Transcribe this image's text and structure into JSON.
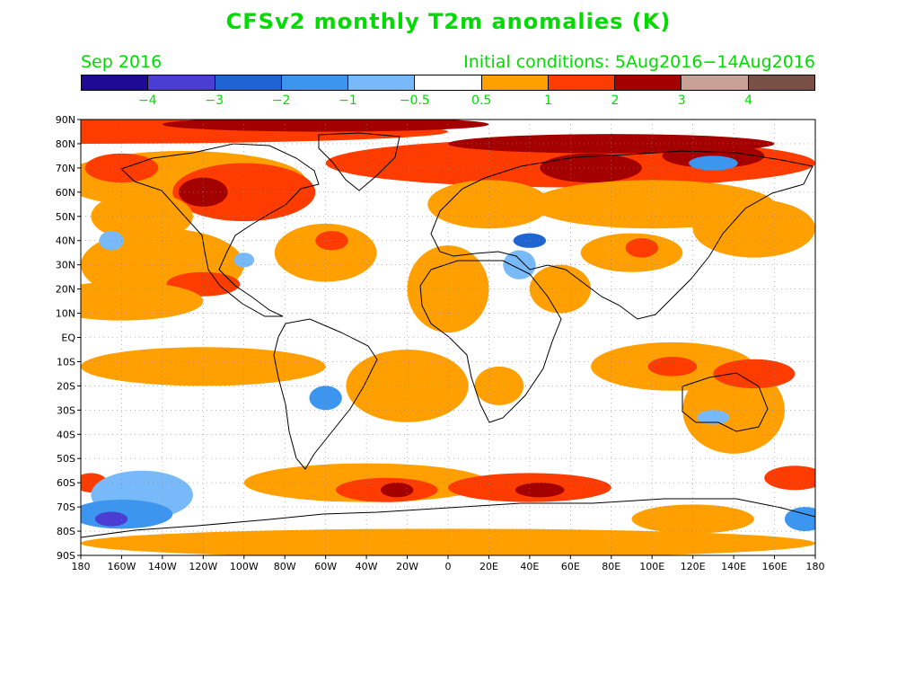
{
  "header": {
    "title": "CFSv2 monthly T2m anomalies (K)",
    "month": "Sep 2016",
    "initial_conditions": "Initial conditions: 5Aug2016−14Aug2016"
  },
  "colorbar": {
    "colors": [
      "#1f0a96",
      "#4b3cd2",
      "#1e64d2",
      "#3c96f0",
      "#78b9fa",
      "#ffffff",
      "#ffa000",
      "#ff3c00",
      "#a50000",
      "#c8a096",
      "#785046"
    ],
    "labels": [
      "−4",
      "−3",
      "−2",
      "−1",
      "−0.5",
      "0.5",
      "1",
      "2",
      "3",
      "4"
    ]
  },
  "axes": {
    "lat_labels": [
      "90N",
      "80N",
      "70N",
      "60N",
      "50N",
      "40N",
      "30N",
      "20N",
      "10N",
      "EQ",
      "10S",
      "20S",
      "30S",
      "40S",
      "50S",
      "60S",
      "70S",
      "80S",
      "90S"
    ],
    "lon_labels": [
      "180",
      "160W",
      "140W",
      "120W",
      "100W",
      "80W",
      "60W",
      "40W",
      "20W",
      "0",
      "20E",
      "40E",
      "60E",
      "80E",
      "100E",
      "120E",
      "140E",
      "160E",
      "180"
    ]
  },
  "anomaly_blobs": [
    {
      "lon": -180,
      "lat": 85,
      "rlon": 180,
      "rlat": 5,
      "c": 7
    },
    {
      "lon": -60,
      "lat": 88,
      "rlon": 80,
      "rlat": 3,
      "c": 8
    },
    {
      "lon": -130,
      "lat": 65,
      "rlon": 60,
      "rlat": 12,
      "c": 6
    },
    {
      "lon": -100,
      "lat": 60,
      "rlon": 35,
      "rlat": 12,
      "c": 7
    },
    {
      "lon": -120,
      "lat": 60,
      "rlon": 12,
      "rlat": 6,
      "c": 8
    },
    {
      "lon": -160,
      "lat": 70,
      "rlon": 18,
      "rlat": 6,
      "c": 7
    },
    {
      "lon": -150,
      "lat": 50,
      "rlon": 25,
      "rlat": 10,
      "c": 6
    },
    {
      "lon": -140,
      "lat": 30,
      "rlon": 40,
      "rlat": 15,
      "c": 6
    },
    {
      "lon": -120,
      "lat": 22,
      "rlon": 18,
      "rlat": 5,
      "c": 7
    },
    {
      "lon": -160,
      "lat": 15,
      "rlon": 40,
      "rlat": 8,
      "c": 6
    },
    {
      "lon": -60,
      "lat": 35,
      "rlon": 25,
      "rlat": 12,
      "c": 6
    },
    {
      "lon": -57,
      "lat": 40,
      "rlon": 8,
      "rlat": 4,
      "c": 7
    },
    {
      "lon": 60,
      "lat": 72,
      "rlon": 120,
      "rlat": 10,
      "c": 7
    },
    {
      "lon": 80,
      "lat": 80,
      "rlon": 80,
      "rlat": 4,
      "c": 8
    },
    {
      "lon": 70,
      "lat": 70,
      "rlon": 25,
      "rlat": 6,
      "c": 8
    },
    {
      "lon": 130,
      "lat": 75,
      "rlon": 25,
      "rlat": 5,
      "c": 8
    },
    {
      "lon": 100,
      "lat": 55,
      "rlon": 60,
      "rlat": 10,
      "c": 6
    },
    {
      "lon": 20,
      "lat": 55,
      "rlon": 30,
      "rlat": 10,
      "c": 6
    },
    {
      "lon": 150,
      "lat": 45,
      "rlon": 30,
      "rlat": 12,
      "c": 6
    },
    {
      "lon": 90,
      "lat": 35,
      "rlon": 25,
      "rlat": 8,
      "c": 6
    },
    {
      "lon": 95,
      "lat": 37,
      "rlon": 8,
      "rlat": 4,
      "c": 7
    },
    {
      "lon": 0,
      "lat": 20,
      "rlon": 20,
      "rlat": 18,
      "c": 6
    },
    {
      "lon": 55,
      "lat": 20,
      "rlon": 15,
      "rlat": 10,
      "c": 6
    },
    {
      "lon": -120,
      "lat": -12,
      "rlon": 60,
      "rlat": 8,
      "c": 6
    },
    {
      "lon": -20,
      "lat": -20,
      "rlon": 30,
      "rlat": 15,
      "c": 6
    },
    {
      "lon": 110,
      "lat": -12,
      "rlon": 40,
      "rlat": 10,
      "c": 6
    },
    {
      "lon": 110,
      "lat": -12,
      "rlon": 12,
      "rlat": 4,
      "c": 7
    },
    {
      "lon": 140,
      "lat": -30,
      "rlon": 25,
      "rlat": 18,
      "c": 6
    },
    {
      "lon": 150,
      "lat": -15,
      "rlon": 20,
      "rlat": 6,
      "c": 7
    },
    {
      "lon": 25,
      "lat": -20,
      "rlon": 12,
      "rlat": 8,
      "c": 6
    },
    {
      "lon": -40,
      "lat": -60,
      "rlon": 60,
      "rlat": 8,
      "c": 6
    },
    {
      "lon": -30,
      "lat": -63,
      "rlon": 25,
      "rlat": 5,
      "c": 7
    },
    {
      "lon": -25,
      "lat": -63,
      "rlon": 8,
      "rlat": 3,
      "c": 8
    },
    {
      "lon": 40,
      "lat": -62,
      "rlon": 40,
      "rlat": 6,
      "c": 7
    },
    {
      "lon": 45,
      "lat": -63,
      "rlon": 12,
      "rlat": 3,
      "c": 8
    },
    {
      "lon": -175,
      "lat": -60,
      "rlon": 8,
      "rlat": 4,
      "c": 7
    },
    {
      "lon": 170,
      "lat": -58,
      "rlon": 15,
      "rlat": 5,
      "c": 7
    },
    {
      "lon": -150,
      "lat": -65,
      "rlon": 25,
      "rlat": 10,
      "c": 4
    },
    {
      "lon": -160,
      "lat": -73,
      "rlon": 25,
      "rlat": 6,
      "c": 3
    },
    {
      "lon": -165,
      "lat": -75,
      "rlon": 8,
      "rlat": 3,
      "c": 1
    },
    {
      "lon": 0,
      "lat": -85,
      "rlon": 180,
      "rlat": 6,
      "c": 6
    },
    {
      "lon": 120,
      "lat": -75,
      "rlon": 30,
      "rlat": 6,
      "c": 6
    },
    {
      "lon": 175,
      "lat": -75,
      "rlon": 10,
      "rlat": 5,
      "c": 3
    },
    {
      "lon": 40,
      "lat": 40,
      "rlon": 8,
      "rlat": 3,
      "c": 2
    },
    {
      "lon": 35,
      "lat": 30,
      "rlon": 8,
      "rlat": 6,
      "c": 4
    },
    {
      "lon": -165,
      "lat": 40,
      "rlon": 6,
      "rlat": 4,
      "c": 4
    },
    {
      "lon": 130,
      "lat": 72,
      "rlon": 12,
      "rlat": 3,
      "c": 3
    },
    {
      "lon": -60,
      "lat": -25,
      "rlon": 8,
      "rlat": 5,
      "c": 3
    },
    {
      "lon": 130,
      "lat": -33,
      "rlon": 8,
      "rlat": 3,
      "c": 4
    },
    {
      "lon": -100,
      "lat": 32,
      "rlon": 5,
      "rlat": 3,
      "c": 4
    }
  ]
}
